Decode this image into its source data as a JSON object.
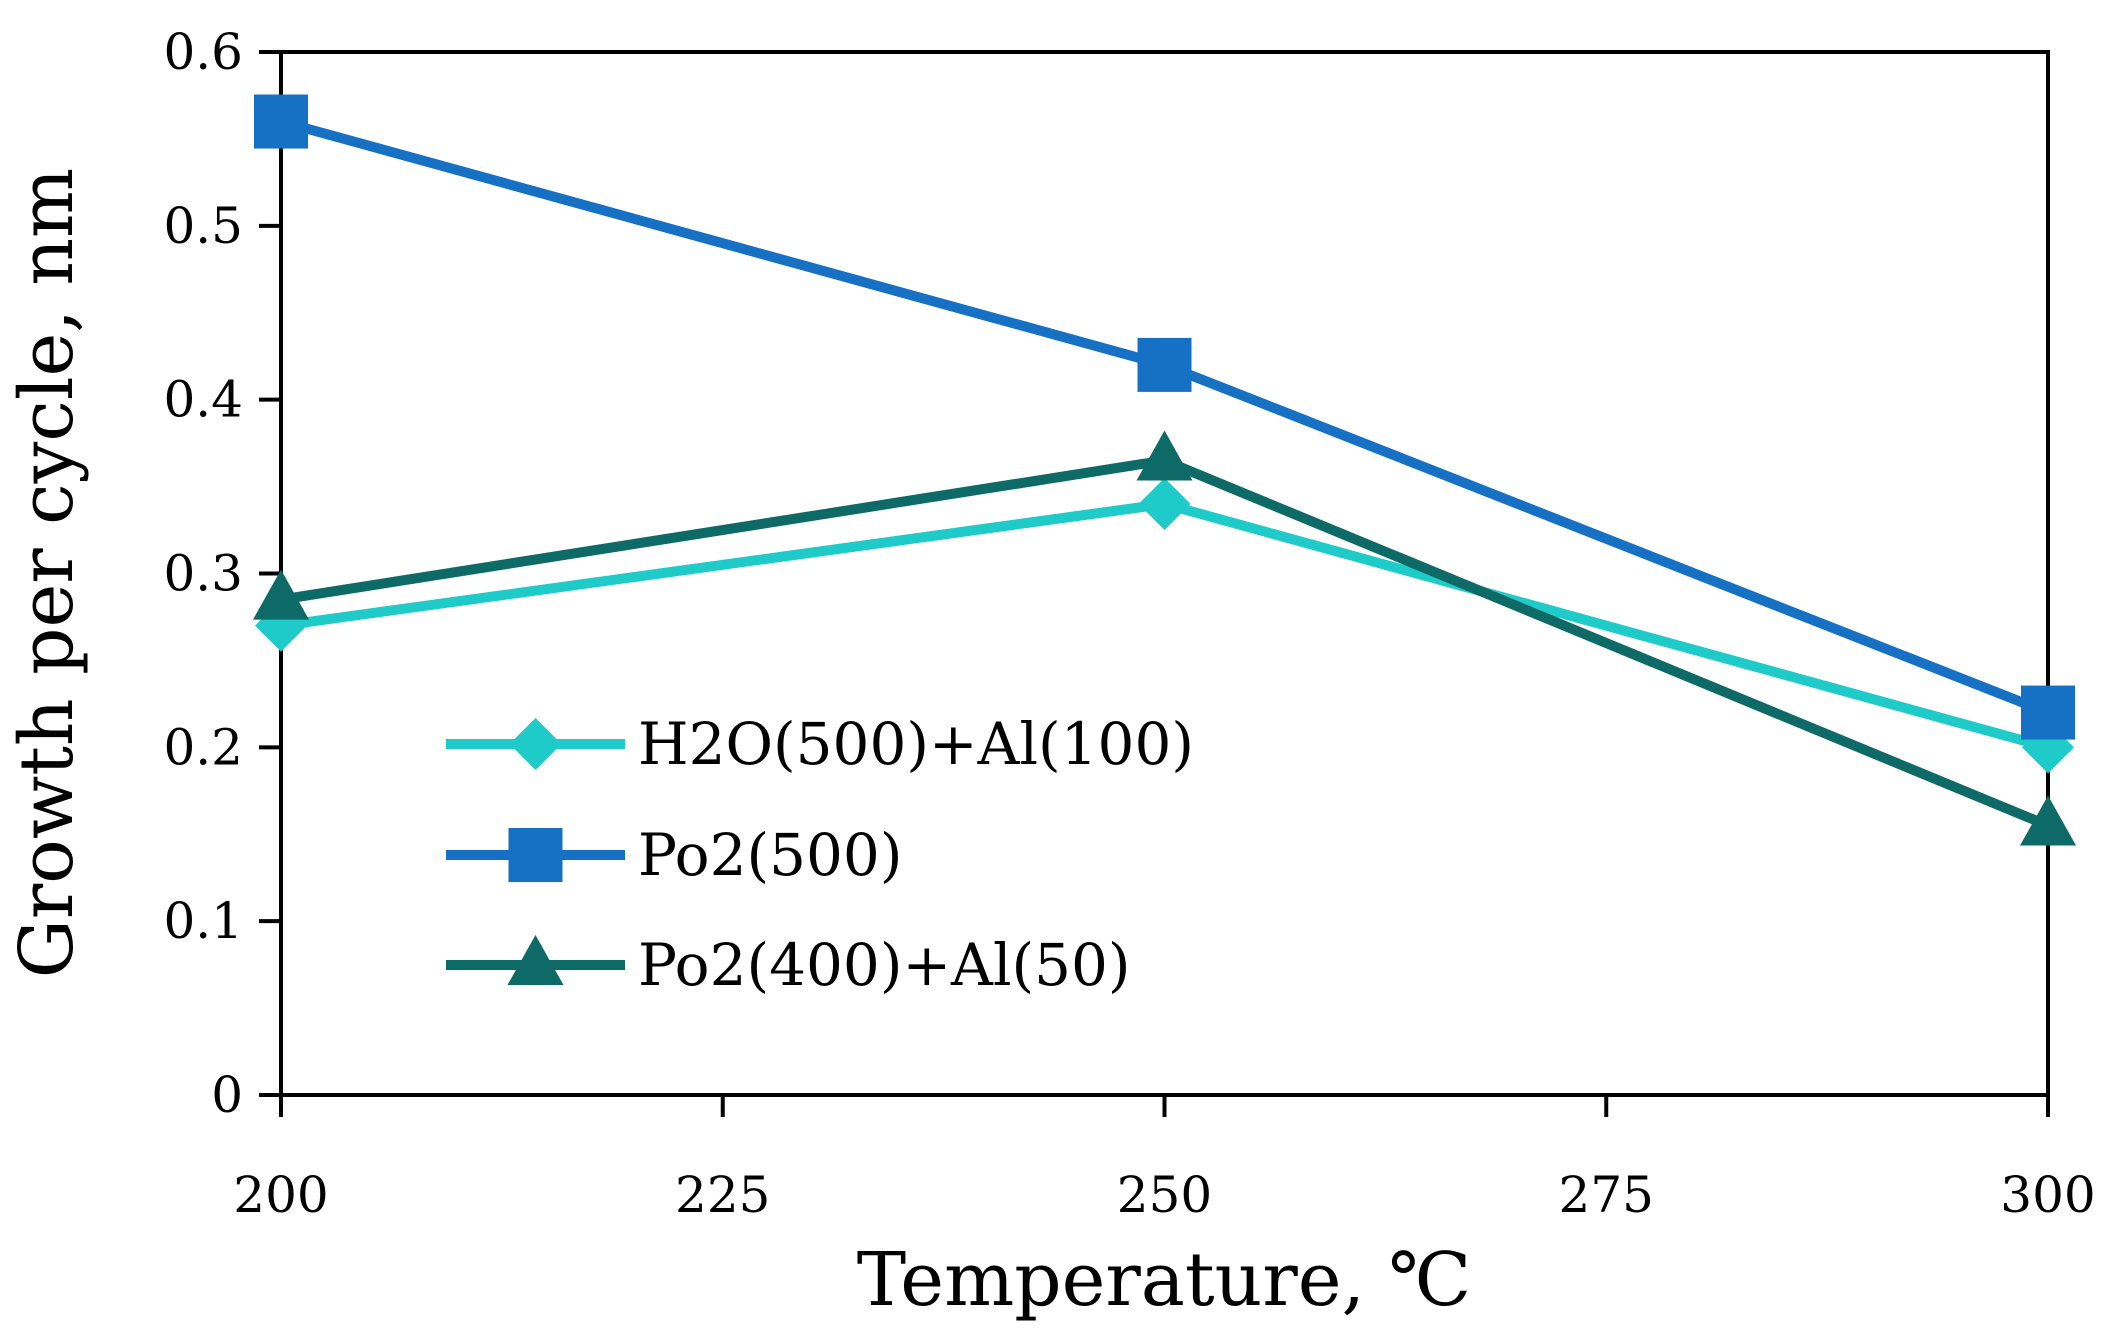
{
  "chart_data": {
    "type": "line",
    "title": "",
    "xlabel": "Temperature, ℃",
    "ylabel": "Growth per cycle, nm",
    "xlim": [
      200,
      300
    ],
    "ylim": [
      0,
      0.6
    ],
    "xticks": [
      200,
      225,
      250,
      275,
      300
    ],
    "yticks": [
      0,
      0.1,
      0.2,
      0.3,
      0.4,
      0.5,
      0.6
    ],
    "xtick_labels": [
      "200",
      "225",
      "250",
      "275",
      "300"
    ],
    "ytick_labels": [
      "0",
      "0.1",
      "0.2",
      "0.3",
      "0.4",
      "0.5",
      "0.6"
    ],
    "grid": false,
    "legend_position": "center-left",
    "x": [
      200,
      250,
      300
    ],
    "series": [
      {
        "name": "H2O(500)+Al(100)",
        "marker": "diamond",
        "color": "#1ECBC9",
        "values": [
          0.27,
          0.34,
          0.2
        ]
      },
      {
        "name": "Po2(500)",
        "marker": "square",
        "color": "#1670C4",
        "values": [
          0.56,
          0.42,
          0.22
        ]
      },
      {
        "name": "Po2(400)+Al(50)",
        "marker": "triangle",
        "color": "#0E6A66",
        "values": [
          0.285,
          0.365,
          0.155
        ]
      }
    ]
  }
}
